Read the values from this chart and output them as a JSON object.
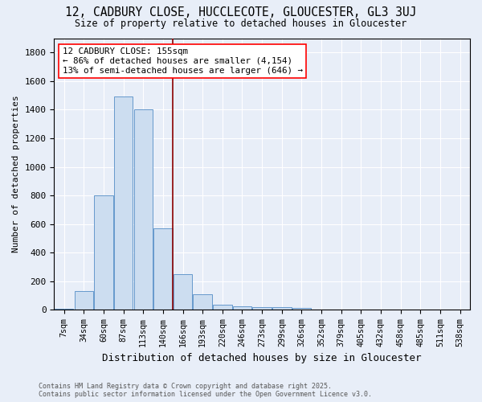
{
  "title_line1": "12, CADBURY CLOSE, HUCCLECOTE, GLOUCESTER, GL3 3UJ",
  "title_line2": "Size of property relative to detached houses in Gloucester",
  "xlabel": "Distribution of detached houses by size in Gloucester",
  "ylabel": "Number of detached properties",
  "categories": [
    "7sqm",
    "34sqm",
    "60sqm",
    "87sqm",
    "113sqm",
    "140sqm",
    "166sqm",
    "193sqm",
    "220sqm",
    "246sqm",
    "273sqm",
    "299sqm",
    "326sqm",
    "352sqm",
    "379sqm",
    "405sqm",
    "432sqm",
    "458sqm",
    "485sqm",
    "511sqm",
    "538sqm"
  ],
  "values": [
    10,
    130,
    800,
    1490,
    1400,
    570,
    250,
    110,
    35,
    25,
    20,
    20,
    15,
    5,
    5,
    0,
    0,
    0,
    0,
    0,
    0
  ],
  "bar_color": "#ccddf0",
  "bar_edge_color": "#6699cc",
  "red_line_x": 5.5,
  "annotation_title": "12 CADBURY CLOSE: 155sqm",
  "annotation_line2": "← 86% of detached houses are smaller (4,154)",
  "annotation_line3": "13% of semi-detached houses are larger (646) →",
  "ylim": [
    0,
    1900
  ],
  "yticks": [
    0,
    200,
    400,
    600,
    800,
    1000,
    1200,
    1400,
    1600,
    1800
  ],
  "background_color": "#e8eef8",
  "grid_color": "#ffffff",
  "footnote_line1": "Contains HM Land Registry data © Crown copyright and database right 2025.",
  "footnote_line2": "Contains public sector information licensed under the Open Government Licence v3.0."
}
